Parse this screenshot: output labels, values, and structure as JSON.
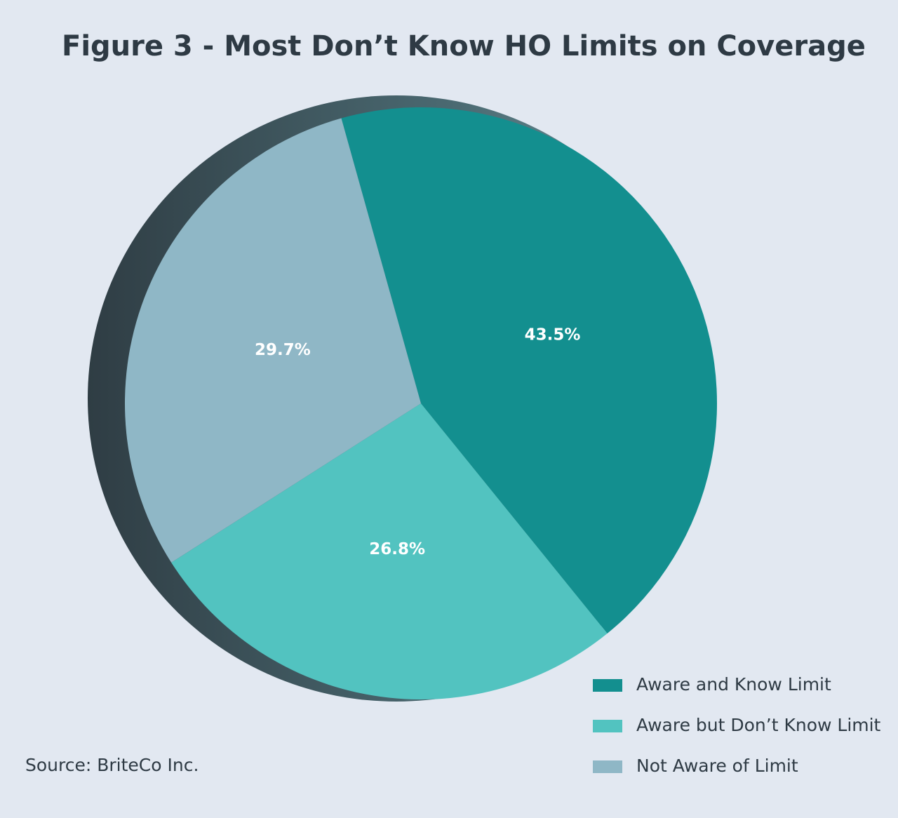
{
  "chart_data": {
    "type": "pie",
    "title": "Figure 3 - Most Don’t Know HO Limits on Coverage",
    "categories": [
      "Aware and Know Limit",
      "Aware but Don’t Know Limit",
      "Not Aware of Limit"
    ],
    "values": [
      43.5,
      26.8,
      29.7
    ],
    "value_labels": [
      "43.5%",
      "26.8%",
      "29.7%"
    ],
    "colors": [
      "#138f8f",
      "#52c3c0",
      "#8fb7c6"
    ],
    "source": "Source: BriteCo Inc."
  }
}
